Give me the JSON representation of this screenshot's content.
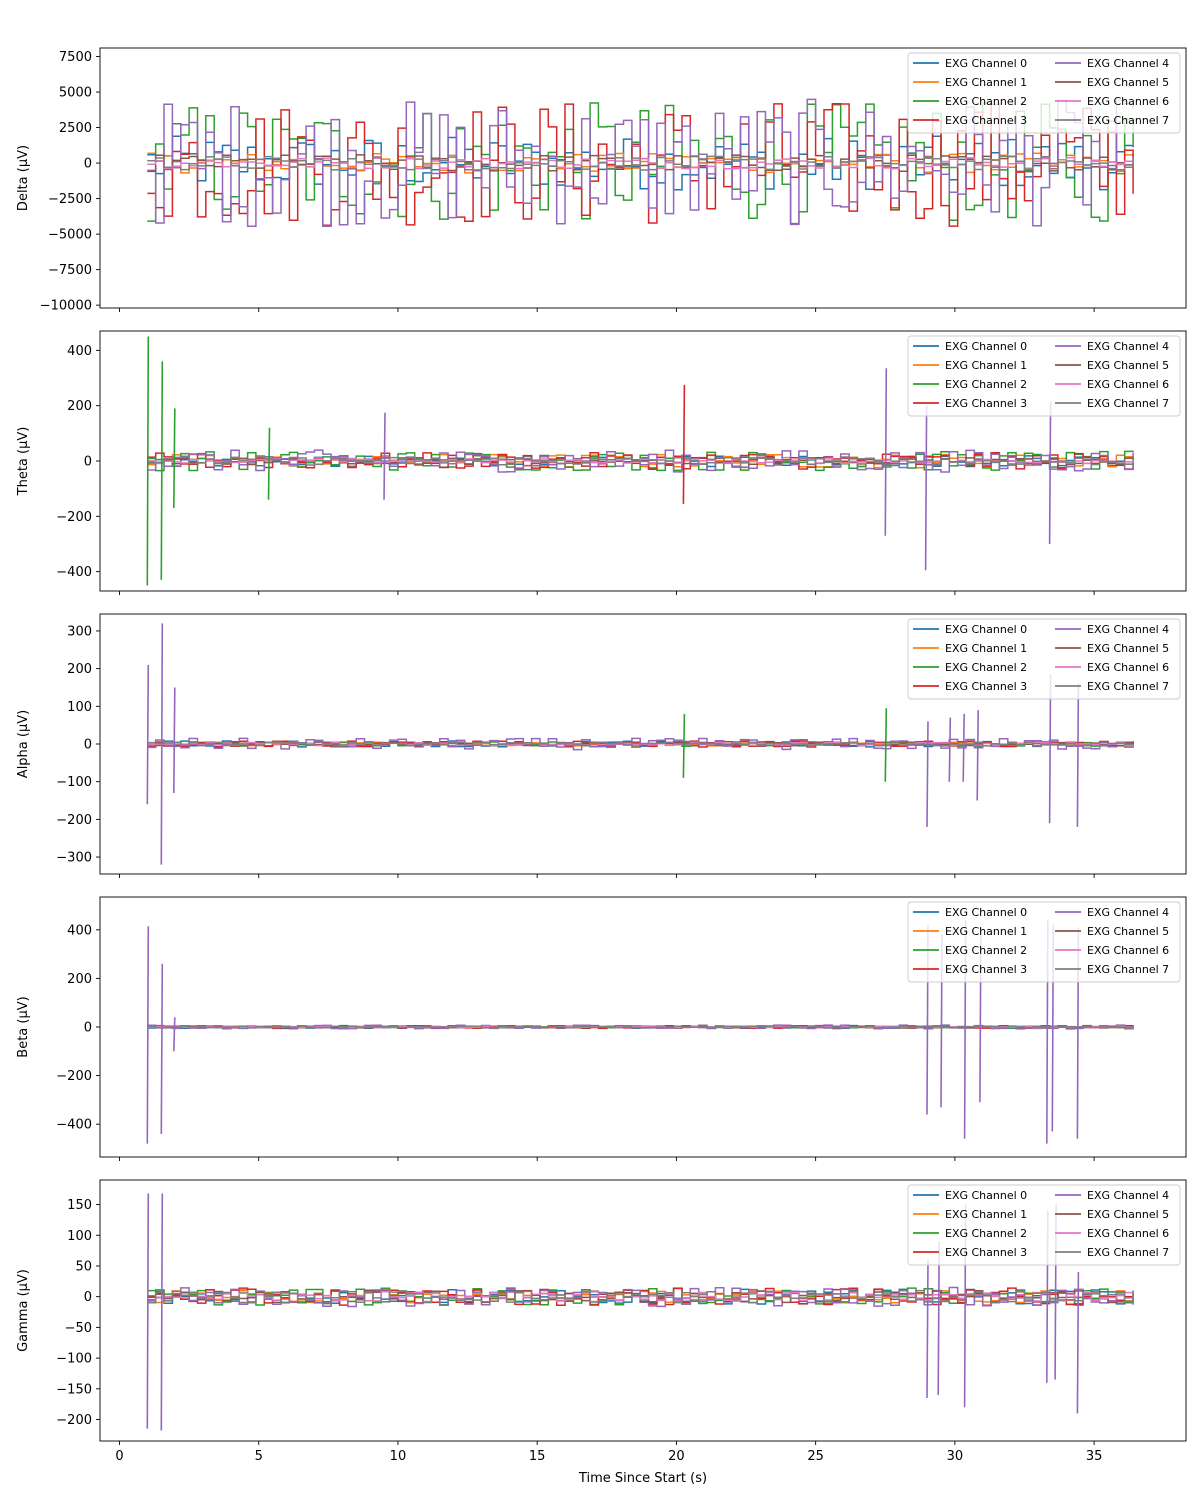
{
  "chart_data": {
    "type": "line",
    "xlabel": "Time Since Start (s)",
    "xlim": [
      -0.7,
      38.3
    ],
    "xticks": [
      0,
      5,
      10,
      15,
      20,
      25,
      30,
      35
    ],
    "data_x_range": [
      1,
      36.6
    ],
    "legend_placement": "upper right",
    "legend_columns": 2,
    "series_names": [
      "EXG Channel 0",
      "EXG Channel 1",
      "EXG Channel 2",
      "EXG Channel 3",
      "EXG Channel 4",
      "EXG Channel 5",
      "EXG Channel 6",
      "EXG Channel 7"
    ],
    "series_colors": [
      "#1f77b4",
      "#ff7f0e",
      "#2ca02c",
      "#d62728",
      "#9467bd",
      "#8c564b",
      "#e377c2",
      "#7f7f7f"
    ],
    "panels": [
      {
        "ylabel": "Delta (µV)",
        "ylim": [
          -10200,
          8100
        ],
        "yticks": [
          -10000,
          -7500,
          -5000,
          -2500,
          0,
          2500,
          5000,
          7500
        ],
        "ytick_labels": [
          "−10000",
          "−7500",
          "−5000",
          "−2500",
          "0",
          "2500",
          "5000",
          "7500"
        ],
        "amplitude": [
          1900,
          700,
          4300,
          4500,
          4500,
          600,
          400,
          500
        ],
        "spikes": []
      },
      {
        "ylabel": "Theta (µV)",
        "ylim": [
          -470,
          470
        ],
        "yticks": [
          -400,
          -200,
          0,
          200,
          400
        ],
        "ytick_labels": [
          "−400",
          "−200",
          "0",
          "200",
          "400"
        ],
        "amplitude": [
          20,
          25,
          35,
          30,
          40,
          12,
          8,
          15
        ],
        "spikes": [
          {
            "x": 1.0,
            "min": -450,
            "max": 450,
            "ch": 2
          },
          {
            "x": 1.5,
            "min": -430,
            "max": 360,
            "ch": 2
          },
          {
            "x": 1.95,
            "min": -170,
            "max": 190,
            "ch": 2
          },
          {
            "x": 5.35,
            "min": -140,
            "max": 120,
            "ch": 2
          },
          {
            "x": 9.5,
            "min": -140,
            "max": 175,
            "ch": 4
          },
          {
            "x": 20.25,
            "min": -155,
            "max": 275,
            "ch": 3
          },
          {
            "x": 27.5,
            "min": -270,
            "max": 335,
            "ch": 4
          },
          {
            "x": 28.95,
            "min": -395,
            "max": 200,
            "ch": 4
          },
          {
            "x": 33.4,
            "min": -300,
            "max": 215,
            "ch": 4
          }
        ]
      },
      {
        "ylabel": "Alpha (µV)",
        "ylim": [
          -345,
          345
        ],
        "yticks": [
          -300,
          -200,
          -100,
          0,
          100,
          200,
          300
        ],
        "ytick_labels": [
          "−300",
          "−200",
          "−100",
          "0",
          "100",
          "200",
          "300"
        ],
        "amplitude": [
          8,
          5,
          6,
          8,
          15,
          5,
          4,
          5
        ],
        "spikes": [
          {
            "x": 1.0,
            "min": -160,
            "max": 210,
            "ch": 4
          },
          {
            "x": 1.5,
            "min": -320,
            "max": 320,
            "ch": 4
          },
          {
            "x": 1.95,
            "min": -130,
            "max": 150,
            "ch": 4
          },
          {
            "x": 20.25,
            "min": -90,
            "max": 80,
            "ch": 2
          },
          {
            "x": 27.5,
            "min": -100,
            "max": 95,
            "ch": 2
          },
          {
            "x": 29.0,
            "min": -220,
            "max": 60,
            "ch": 4
          },
          {
            "x": 29.8,
            "min": -100,
            "max": 70,
            "ch": 4
          },
          {
            "x": 30.3,
            "min": -100,
            "max": 80,
            "ch": 4
          },
          {
            "x": 30.8,
            "min": -150,
            "max": 90,
            "ch": 4
          },
          {
            "x": 33.4,
            "min": -210,
            "max": 185,
            "ch": 4
          },
          {
            "x": 34.4,
            "min": -220,
            "max": 160,
            "ch": 4
          }
        ]
      },
      {
        "ylabel": "Beta (µV)",
        "ylim": [
          -535,
          535
        ],
        "yticks": [
          -400,
          -200,
          0,
          200,
          400
        ],
        "ytick_labels": [
          "−400",
          "−200",
          "0",
          "200",
          "400"
        ],
        "amplitude": [
          6,
          4,
          4,
          6,
          8,
          4,
          3,
          4
        ],
        "spikes": [
          {
            "x": 1.0,
            "min": -480,
            "max": 415,
            "ch": 4
          },
          {
            "x": 1.5,
            "min": -440,
            "max": 260,
            "ch": 4
          },
          {
            "x": 1.95,
            "min": -100,
            "max": 40,
            "ch": 4
          },
          {
            "x": 29.0,
            "min": -360,
            "max": 420,
            "ch": 4
          },
          {
            "x": 29.5,
            "min": -330,
            "max": 380,
            "ch": 4
          },
          {
            "x": 30.35,
            "min": -460,
            "max": 440,
            "ch": 4
          },
          {
            "x": 30.9,
            "min": -310,
            "max": 400,
            "ch": 4
          },
          {
            "x": 33.3,
            "min": -480,
            "max": 440,
            "ch": 4
          },
          {
            "x": 33.5,
            "min": -430,
            "max": 420,
            "ch": 4
          },
          {
            "x": 34.4,
            "min": -460,
            "max": 410,
            "ch": 4
          }
        ]
      },
      {
        "ylabel": "Gamma (µV)",
        "ylim": [
          -235,
          190
        ],
        "yticks": [
          -200,
          -150,
          -100,
          -50,
          0,
          50,
          100,
          150
        ],
        "ytick_labels": [
          "−200",
          "−150",
          "−100",
          "−50",
          "0",
          "50",
          "100",
          "150"
        ],
        "amplitude": [
          12,
          10,
          14,
          14,
          16,
          10,
          8,
          10
        ],
        "spikes": [
          {
            "x": 1.0,
            "min": -215,
            "max": 168,
            "ch": 4
          },
          {
            "x": 1.5,
            "min": -218,
            "max": 168,
            "ch": 4
          },
          {
            "x": 29.0,
            "min": -165,
            "max": 60,
            "ch": 4
          },
          {
            "x": 29.4,
            "min": -160,
            "max": 90,
            "ch": 4
          },
          {
            "x": 30.35,
            "min": -180,
            "max": 150,
            "ch": 4
          },
          {
            "x": 33.3,
            "min": -140,
            "max": 140,
            "ch": 4
          },
          {
            "x": 33.6,
            "min": -135,
            "max": 150,
            "ch": 4
          },
          {
            "x": 34.4,
            "min": -190,
            "max": 40,
            "ch": 4
          }
        ]
      }
    ]
  }
}
